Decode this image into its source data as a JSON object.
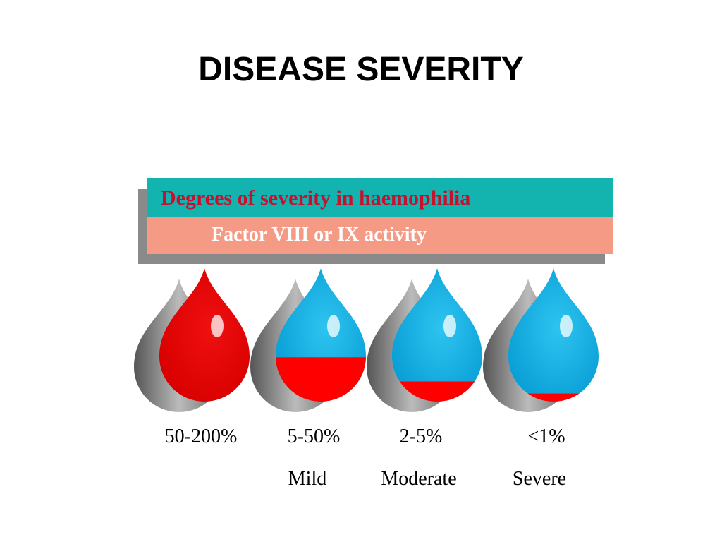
{
  "title": "DISEASE SEVERITY",
  "banner": {
    "heading": "Degrees of severity in haemophilia",
    "subheading": "Factor VIII or IX activity"
  },
  "drops": [
    {
      "range": "50-200%"
    },
    {
      "range": "5-50%",
      "label": "Mild"
    },
    {
      "range": "2-5%",
      "label": "Moderate"
    },
    {
      "range": "<1%",
      "label": "Severe"
    }
  ]
}
